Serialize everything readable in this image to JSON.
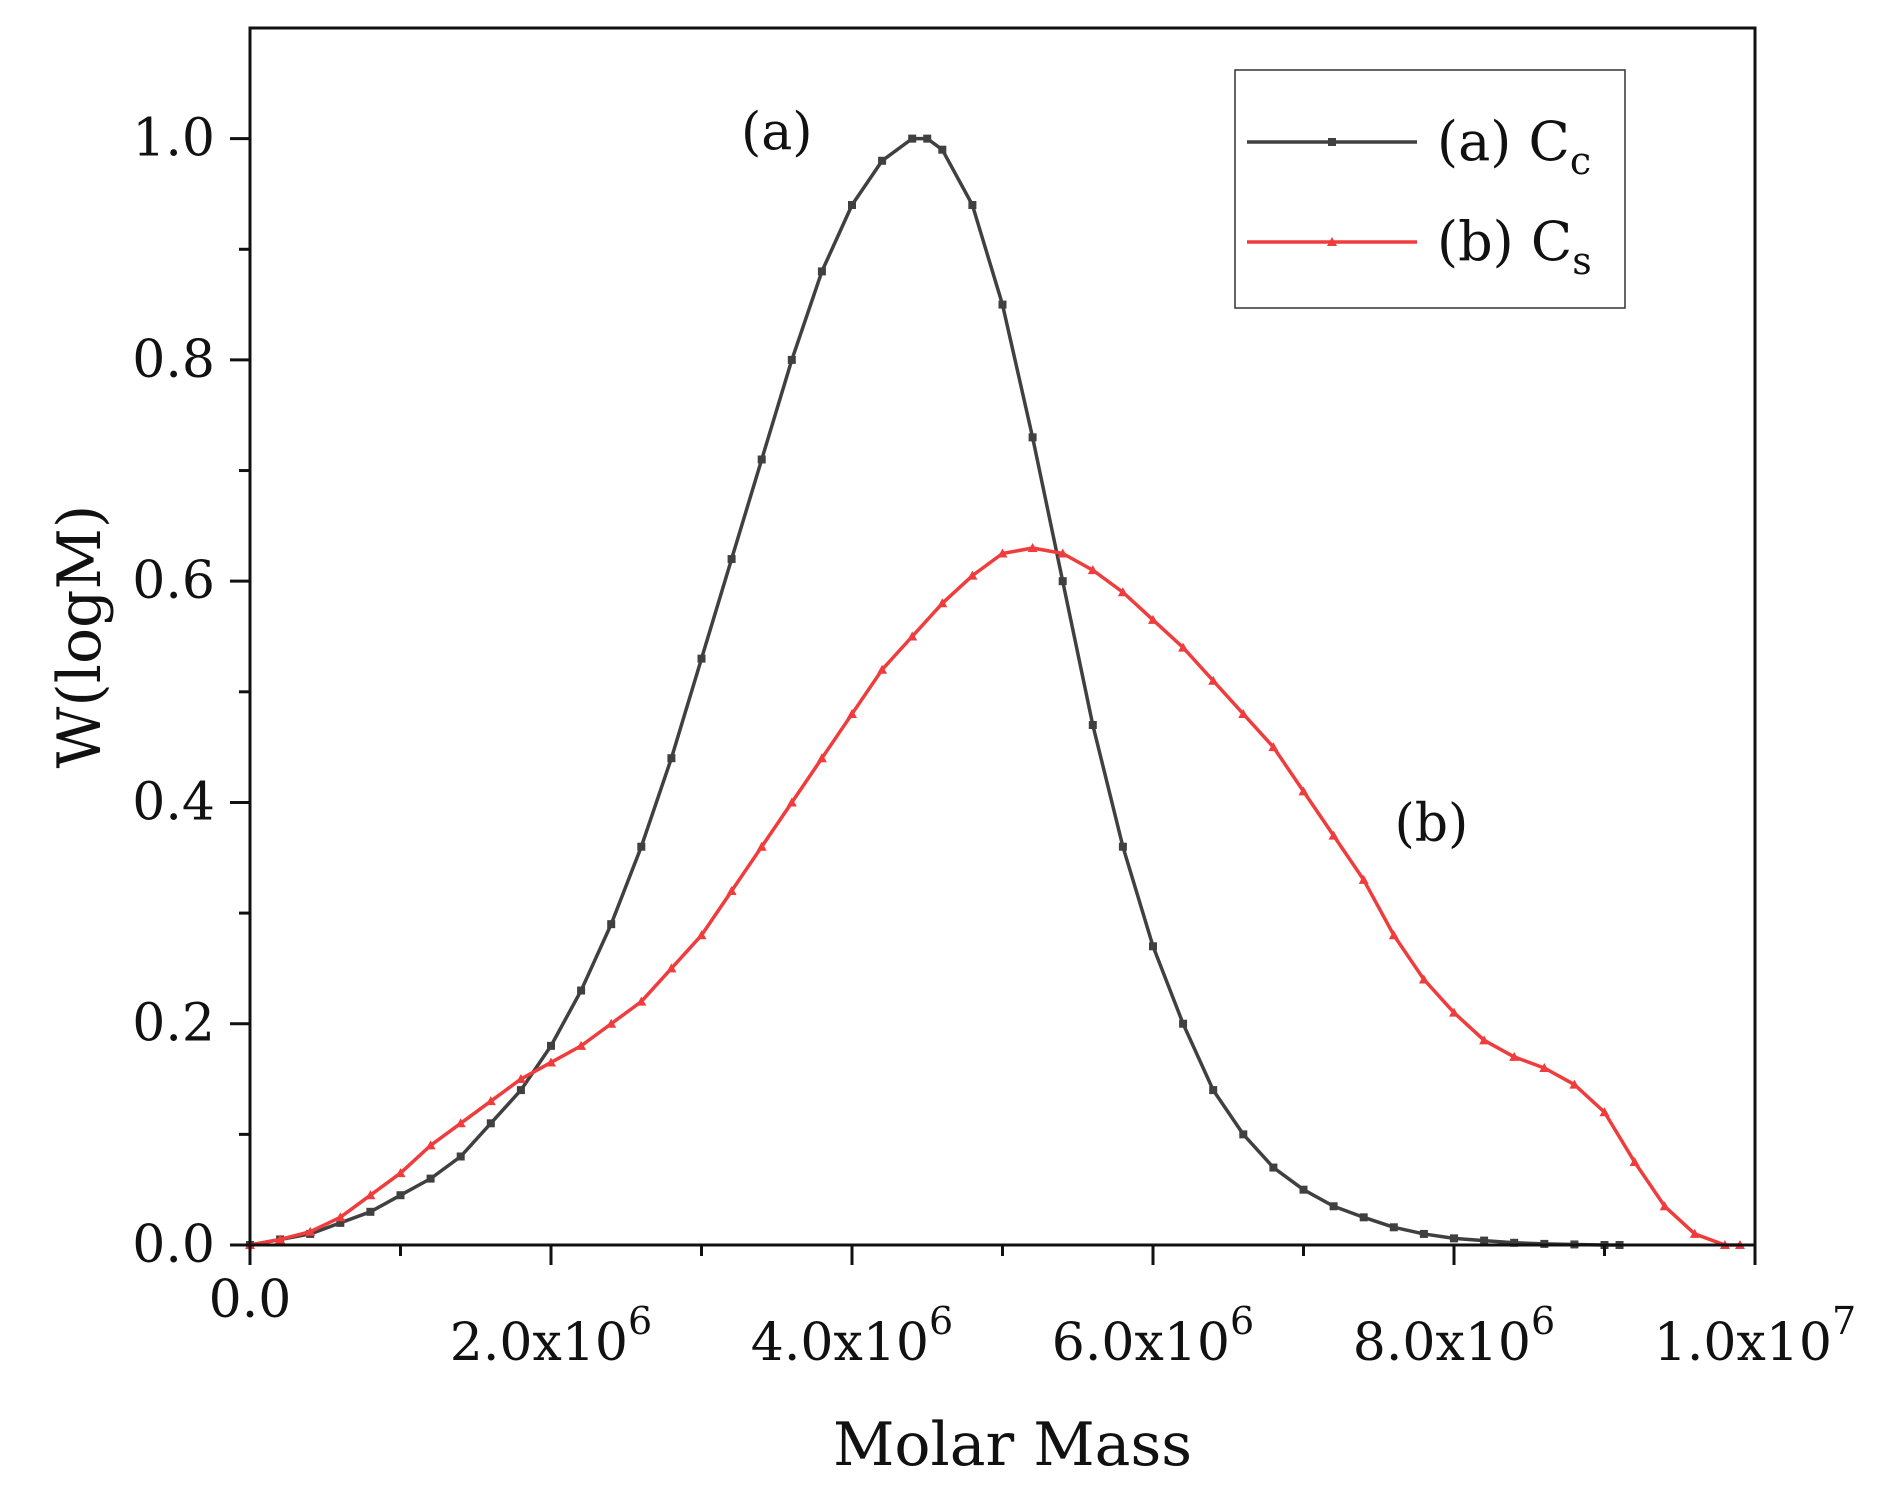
{
  "chart_data": {
    "type": "line",
    "title": "",
    "xlabel": "Molar Mass",
    "ylabel": "W(logM)",
    "xlim": [
      0,
      10000000
    ],
    "ylim": [
      0,
      1.1
    ],
    "grid": false,
    "legend_position": "top-right",
    "x_ticks": [
      {
        "value": 0,
        "label": "0.0",
        "exp": ""
      },
      {
        "value": 2000000,
        "label": "2.0x10",
        "exp": "6"
      },
      {
        "value": 4000000,
        "label": "4.0x10",
        "exp": "6"
      },
      {
        "value": 6000000,
        "label": "6.0x10",
        "exp": "6"
      },
      {
        "value": 8000000,
        "label": "8.0x10",
        "exp": "6"
      },
      {
        "value": 10000000,
        "label": "1.0x10",
        "exp": "7"
      }
    ],
    "y_ticks": [
      {
        "value": 0.0,
        "label": "0.0"
      },
      {
        "value": 0.2,
        "label": "0.2"
      },
      {
        "value": 0.4,
        "label": "0.4"
      },
      {
        "value": 0.6,
        "label": "0.6"
      },
      {
        "value": 0.8,
        "label": "0.8"
      },
      {
        "value": 1.0,
        "label": "1.0"
      }
    ],
    "annotations": [
      {
        "text": "(a)",
        "x": 3500000,
        "y": 0.99
      },
      {
        "text": "(b)",
        "x": 7850000,
        "y": 0.365
      }
    ],
    "series": [
      {
        "name": "(a) C",
        "subscript": "c",
        "color": "#404040",
        "marker": "square",
        "x": [
          0,
          200000,
          400000,
          600000,
          800000,
          1000000,
          1200000,
          1400000,
          1600000,
          1800000,
          2000000,
          2200000,
          2400000,
          2600000,
          2800000,
          3000000,
          3200000,
          3400000,
          3600000,
          3800000,
          4000000,
          4200000,
          4400000,
          4500000,
          4600000,
          4800000,
          5000000,
          5200000,
          5400000,
          5600000,
          5800000,
          6000000,
          6200000,
          6400000,
          6600000,
          6800000,
          7000000,
          7200000,
          7400000,
          7600000,
          7800000,
          8000000,
          8200000,
          8400000,
          8600000,
          8800000,
          9000000,
          9100000
        ],
        "y": [
          0.0,
          0.005,
          0.01,
          0.02,
          0.03,
          0.045,
          0.06,
          0.08,
          0.11,
          0.14,
          0.18,
          0.23,
          0.29,
          0.36,
          0.44,
          0.53,
          0.62,
          0.71,
          0.8,
          0.88,
          0.94,
          0.98,
          1.0,
          1.0,
          0.99,
          0.94,
          0.85,
          0.73,
          0.6,
          0.47,
          0.36,
          0.27,
          0.2,
          0.14,
          0.1,
          0.07,
          0.05,
          0.035,
          0.025,
          0.016,
          0.01,
          0.006,
          0.004,
          0.002,
          0.001,
          0.0005,
          0.0,
          0.0
        ]
      },
      {
        "name": "(b) C",
        "subscript": "s",
        "color": "#f03c3c",
        "marker": "triangle",
        "x": [
          0,
          200000,
          400000,
          600000,
          800000,
          1000000,
          1200000,
          1400000,
          1600000,
          1800000,
          2000000,
          2200000,
          2400000,
          2600000,
          2800000,
          3000000,
          3200000,
          3400000,
          3600000,
          3800000,
          4000000,
          4200000,
          4400000,
          4600000,
          4800000,
          5000000,
          5200000,
          5400000,
          5600000,
          5800000,
          6000000,
          6200000,
          6400000,
          6600000,
          6800000,
          7000000,
          7200000,
          7400000,
          7600000,
          7800000,
          8000000,
          8200000,
          8400000,
          8600000,
          8800000,
          9000000,
          9200000,
          9400000,
          9600000,
          9800000,
          9900000
        ],
        "y": [
          0.0,
          0.005,
          0.012,
          0.025,
          0.045,
          0.065,
          0.09,
          0.11,
          0.13,
          0.15,
          0.165,
          0.18,
          0.2,
          0.22,
          0.25,
          0.28,
          0.32,
          0.36,
          0.4,
          0.44,
          0.48,
          0.52,
          0.55,
          0.58,
          0.605,
          0.625,
          0.63,
          0.625,
          0.61,
          0.59,
          0.565,
          0.54,
          0.51,
          0.48,
          0.45,
          0.41,
          0.37,
          0.33,
          0.28,
          0.24,
          0.21,
          0.185,
          0.17,
          0.16,
          0.145,
          0.12,
          0.075,
          0.035,
          0.01,
          0.0,
          0.0
        ]
      }
    ]
  }
}
